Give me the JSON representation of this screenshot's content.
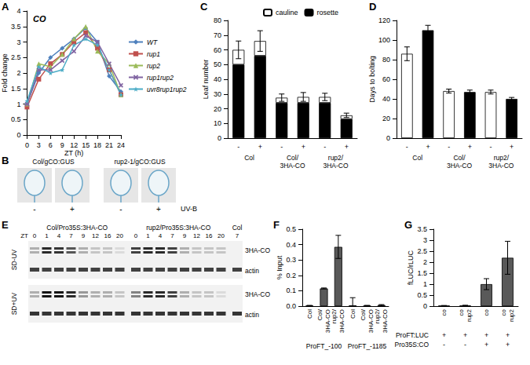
{
  "chart_data": [
    {
      "panel": "A",
      "type": "line",
      "title": "CO",
      "x_label": "ZT (h)",
      "y_label": "Fold change",
      "x": [
        0,
        3,
        6,
        9,
        12,
        15,
        18,
        21,
        24
      ],
      "xlim": [
        0,
        24
      ],
      "xticks": [
        0,
        3,
        6,
        9,
        12,
        15,
        18,
        21,
        24
      ],
      "ylim": [
        0,
        4
      ],
      "yticks": [
        0,
        0.5,
        1,
        1.5,
        2,
        2.5,
        3,
        3.5,
        4
      ],
      "grid": false,
      "legend": "right",
      "series": [
        {
          "name": "WT",
          "color": "#4f81bd",
          "marker": "diamond",
          "values": [
            1.0,
            2.0,
            2.5,
            2.8,
            3.1,
            3.45,
            3.0,
            1.9,
            1.4
          ]
        },
        {
          "name": "rup1",
          "color": "#c0504d",
          "marker": "square",
          "values": [
            0.9,
            1.8,
            2.3,
            2.6,
            3.0,
            3.3,
            2.8,
            2.1,
            1.3
          ]
        },
        {
          "name": "rup2",
          "color": "#9bbb59",
          "marker": "triangle",
          "values": [
            1.0,
            2.3,
            2.2,
            2.6,
            3.1,
            3.5,
            2.7,
            2.3,
            1.3
          ]
        },
        {
          "name": "rup1rup2",
          "color": "#8064a2",
          "marker": "x",
          "values": [
            1.0,
            2.1,
            2.1,
            2.4,
            2.7,
            3.2,
            3.0,
            2.3,
            1.6
          ]
        },
        {
          "name": "uvr8rup1rup2",
          "color": "#4bacc6",
          "marker": "star",
          "values": [
            1.1,
            2.2,
            2.0,
            2.1,
            2.9,
            3.1,
            2.9,
            2.1,
            1.3
          ]
        }
      ]
    },
    {
      "panel": "C",
      "type": "bar",
      "stacked": true,
      "y_label": "Leaf number",
      "categories": [
        "-",
        "+",
        "-",
        "+",
        "-",
        "+"
      ],
      "groups": [
        "Col",
        "Col/\n3HA-CO",
        "rup2/\n3HA-CO"
      ],
      "ylim": [
        0,
        80
      ],
      "yticks": [
        0,
        10,
        20,
        30,
        40,
        50,
        60,
        70,
        80
      ],
      "grid": false,
      "legend": "top",
      "series": [
        {
          "name": "cauline",
          "color": "#ffffff",
          "values": [
            10,
            10,
            3.5,
            4,
            4,
            2.5
          ],
          "errors": [
            6,
            7,
            2.5,
            3,
            2.5,
            1.5
          ]
        },
        {
          "name": "rosette",
          "color": "#000000",
          "values": [
            50,
            56,
            24,
            24,
            24,
            13
          ]
        }
      ]
    },
    {
      "panel": "D",
      "type": "bar",
      "y_label": "Days to bolting",
      "categories": [
        "-",
        "+",
        "-",
        "+",
        "-",
        "+"
      ],
      "groups": [
        "Col",
        "Col/\n3HA-CO",
        "rup2/\n3HA-CO"
      ],
      "colors": [
        "#ffffff",
        "#000000",
        "#ffffff",
        "#000000",
        "#ffffff",
        "#000000"
      ],
      "values": [
        86,
        110,
        48,
        47,
        47,
        40
      ],
      "errors": [
        7,
        5,
        2,
        2,
        2,
        1.5
      ],
      "ylim": [
        0,
        120
      ],
      "yticks": [
        0,
        20,
        40,
        60,
        80,
        100,
        120
      ],
      "grid": false
    },
    {
      "panel": "F",
      "type": "bar",
      "y_label": "% Input",
      "categories": [
        "Col",
        "Col/\n3HA-CO",
        "rup2/\n3HA-CO",
        "Col",
        "Col/\n3HA-CO",
        "rup2/\n3HA-CO"
      ],
      "groups": [
        "ProFT_-100",
        "ProFT_-1185"
      ],
      "color": "#595959",
      "values": [
        0.003,
        0.115,
        0.385,
        0.005,
        0.003,
        0.007
      ],
      "errors": [
        0.002,
        0.003,
        0.075,
        0.05,
        0.002,
        0.003
      ],
      "ylim": [
        0,
        0.5
      ],
      "yticks": [
        {
          "value": 0,
          "label": "0.0"
        },
        0.1,
        0.2,
        0.3,
        0.4,
        0.5
      ],
      "grid": false
    },
    {
      "panel": "G",
      "type": "bar",
      "y_label": "fLUC/rLUC",
      "categories": [
        "co",
        "co\nrup2",
        "co",
        "co\nrup2"
      ],
      "color": "#595959",
      "values": [
        0.02,
        0.03,
        1.0,
        2.2
      ],
      "errors": [
        0.01,
        0.01,
        0.25,
        0.75
      ],
      "conditions": [
        {
          "label": "ProFT:LUC",
          "marks": [
            "+",
            "+",
            "+",
            "+"
          ]
        },
        {
          "label": "Pro35S:CO",
          "marks": [
            "-",
            "-",
            "+",
            "+"
          ]
        }
      ],
      "ylim": [
        0,
        3.5
      ],
      "yticks": [
        0,
        0.5,
        1,
        1.5,
        2,
        2.5,
        3,
        3.5
      ],
      "grid": false
    }
  ],
  "images": [
    {
      "panel": "B",
      "genotypes": [
        "Col/gCO:GUS",
        "rup2-1/gCO:GUS"
      ],
      "treatments": [
        "-",
        "+",
        "-",
        "+"
      ],
      "treatment_label": "UV-B"
    },
    {
      "panel": "E",
      "zt_label": "ZT",
      "genotypes": [
        {
          "label": "Col/Pro35S:3HA-CO",
          "zt": [
            0,
            1,
            4,
            7,
            9,
            12,
            16,
            20
          ]
        },
        {
          "label": "rup2/Pro35S:3HA-CO",
          "zt": [
            0,
            1,
            4,
            7,
            9,
            12,
            16,
            20
          ]
        },
        {
          "label": "Col",
          "zt": [
            7
          ]
        }
      ],
      "blots": [
        {
          "condition": "SD-UV",
          "rows": [
            {
              "label": "3HA-CO",
              "bands": [
                0.3,
                0.9,
                0.85,
                0.7,
                0.3,
                0.2,
                0.2,
                0.1,
                0.8,
                0.9,
                0.9,
                0.8,
                0.3,
                0.2,
                0.2,
                0.2,
                0
              ]
            },
            {
              "label": "actin",
              "bands": [
                0.8,
                0.8,
                0.8,
                0.8,
                0.8,
                0.8,
                0.8,
                0.8,
                0.8,
                0.8,
                0.8,
                0.8,
                0.8,
                0.8,
                0.8,
                0.8,
                0.8
              ]
            }
          ]
        },
        {
          "condition": "SD+UV",
          "rows": [
            {
              "label": "3HA-CO",
              "bands": [
                0.3,
                1,
                1,
                0.9,
                0.4,
                0.3,
                0.3,
                0.2,
                0.5,
                0.9,
                0.9,
                0.8,
                0.3,
                0.2,
                0.2,
                0.1,
                0
              ]
            },
            {
              "label": "actin",
              "bands": [
                0.85,
                0.85,
                0.85,
                0.85,
                0.85,
                0.85,
                0.85,
                0.85,
                0.85,
                0.85,
                0.85,
                0.85,
                0.85,
                0.85,
                0.85,
                0.85,
                0.85
              ]
            }
          ]
        }
      ]
    }
  ]
}
